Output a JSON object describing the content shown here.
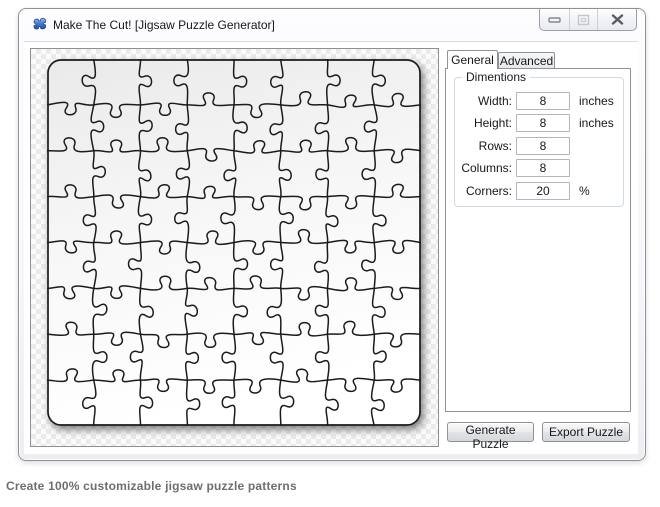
{
  "window": {
    "title": "Make The Cut! [Jigsaw Puzzle Generator]",
    "app_icon": "puzzle-piece-icon"
  },
  "titlebar_controls": {
    "minimize_icon": "minimize-icon",
    "maximize_icon": "maximize-icon",
    "close_icon": "close-icon"
  },
  "tabs": [
    {
      "label": "General",
      "active": true
    },
    {
      "label": "Advanced",
      "active": false
    }
  ],
  "general_tab": {
    "group_title": "Dimentions",
    "fields": [
      {
        "label": "Width:",
        "value": "8",
        "unit": "inches"
      },
      {
        "label": "Height:",
        "value": "8",
        "unit": "inches"
      },
      {
        "label": "Rows:",
        "value": "8",
        "unit": ""
      },
      {
        "label": "Columns:",
        "value": "8",
        "unit": ""
      },
      {
        "label": "Corners:",
        "value": "20",
        "unit": "%"
      }
    ]
  },
  "actions": {
    "generate_label": "Generate Puzzle",
    "export_label": "Export Puzzle"
  },
  "preview": {
    "rows": 8,
    "columns": 8,
    "tab_percent": 20
  },
  "footer_caption": "Create 100% customizable jigsaw puzzle patterns",
  "colors": {
    "puzzle_outline": "#1b1b1b",
    "puzzle_fill_top": "#eaeaea",
    "puzzle_fill_bottom": "#ffffff",
    "app_icon_blue": "#3f6fc4",
    "window_border": "#8e9196",
    "groupbox_border": "#cfdae2"
  }
}
